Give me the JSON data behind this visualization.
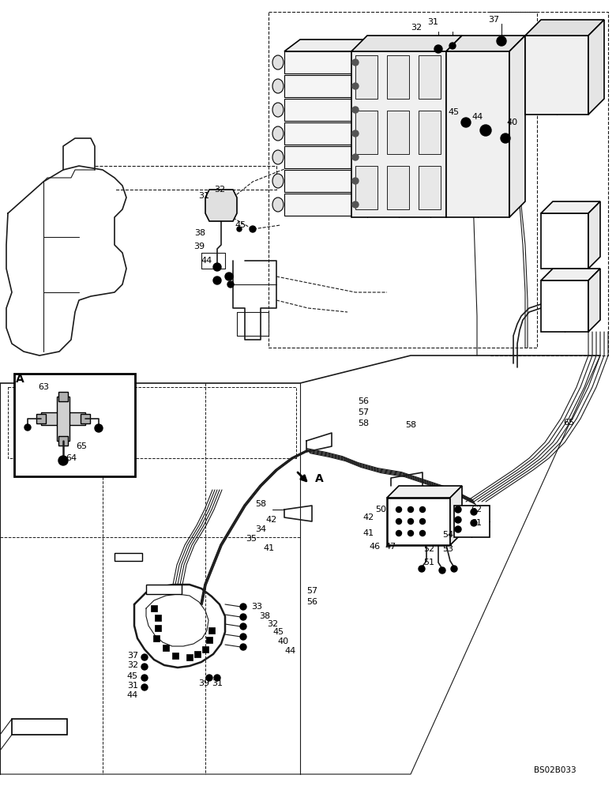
{
  "watermark": "BS02B033",
  "background_color": "#ffffff",
  "figsize": [
    7.8,
    10.0
  ],
  "dpi": 100,
  "line_color": "#1a1a1a",
  "gray": "#888888",
  "lightgray": "#cccccc"
}
